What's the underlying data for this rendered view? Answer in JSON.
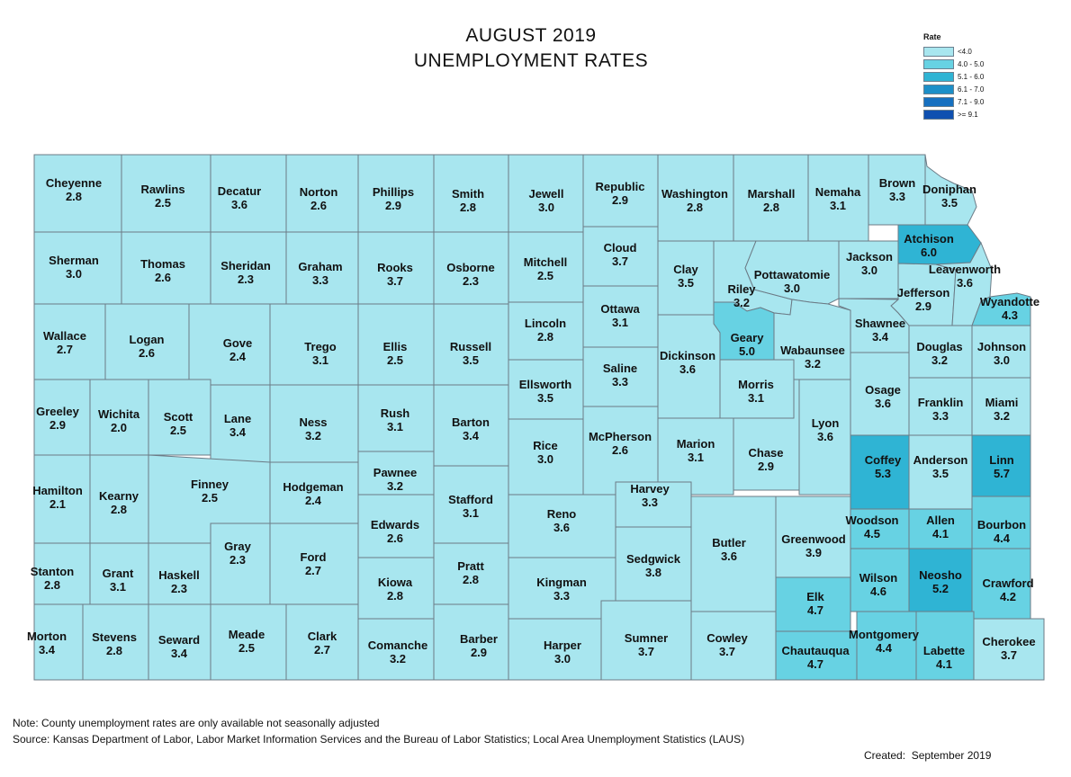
{
  "title_line1": "AUGUST 2019",
  "title_line2": "UNEMPLOYMENT RATES",
  "legend": {
    "title": "Rate",
    "items": [
      {
        "label": "<4.0",
        "color": "#a8e6ef"
      },
      {
        "label": "4.0 - 5.0",
        "color": "#67d2e3"
      },
      {
        "label": "5.1 - 6.0",
        "color": "#2fb4d4"
      },
      {
        "label": "6.1 - 7.0",
        "color": "#1c8fc8"
      },
      {
        "label": "7.1 - 9.0",
        "color": "#1670c0"
      },
      {
        "label": ">= 9.1",
        "color": "#0f50b0"
      }
    ]
  },
  "counties": [
    {
      "name": "Cheyenne",
      "rate": "2.8"
    },
    {
      "name": "Rawlins",
      "rate": "2.5"
    },
    {
      "name": "Decatur",
      "rate": "3.6"
    },
    {
      "name": "Norton",
      "rate": "2.6"
    },
    {
      "name": "Phillips",
      "rate": "2.9"
    },
    {
      "name": "Smith",
      "rate": "2.8"
    },
    {
      "name": "Jewell",
      "rate": "3.0"
    },
    {
      "name": "Republic",
      "rate": "2.9"
    },
    {
      "name": "Washington",
      "rate": "2.8"
    },
    {
      "name": "Marshall",
      "rate": "2.8"
    },
    {
      "name": "Nemaha",
      "rate": "3.1"
    },
    {
      "name": "Brown",
      "rate": "3.3"
    },
    {
      "name": "Doniphan",
      "rate": "3.5"
    },
    {
      "name": "Sherman",
      "rate": "3.0"
    },
    {
      "name": "Thomas",
      "rate": "2.6"
    },
    {
      "name": "Sheridan",
      "rate": "2.3"
    },
    {
      "name": "Graham",
      "rate": "3.3"
    },
    {
      "name": "Rooks",
      "rate": "3.7"
    },
    {
      "name": "Osborne",
      "rate": "2.3"
    },
    {
      "name": "Mitchell",
      "rate": "2.5"
    },
    {
      "name": "Cloud",
      "rate": "3.7"
    },
    {
      "name": "Clay",
      "rate": "3.5"
    },
    {
      "name": "Riley",
      "rate": "3.2"
    },
    {
      "name": "Pottawatomie",
      "rate": "3.0"
    },
    {
      "name": "Jackson",
      "rate": "3.0"
    },
    {
      "name": "Atchison",
      "rate": "6.0"
    },
    {
      "name": "Jefferson",
      "rate": "2.9"
    },
    {
      "name": "Leavenworth",
      "rate": "3.6"
    },
    {
      "name": "Wyandotte",
      "rate": "4.3"
    },
    {
      "name": "Wallace",
      "rate": "2.7"
    },
    {
      "name": "Logan",
      "rate": "2.6"
    },
    {
      "name": "Gove",
      "rate": "2.4"
    },
    {
      "name": "Trego",
      "rate": "3.1"
    },
    {
      "name": "Ellis",
      "rate": "2.5"
    },
    {
      "name": "Russell",
      "rate": "3.5"
    },
    {
      "name": "Lincoln",
      "rate": "2.8"
    },
    {
      "name": "Ottawa",
      "rate": "3.1"
    },
    {
      "name": "Geary",
      "rate": "5.0"
    },
    {
      "name": "Dickinson",
      "rate": "3.6"
    },
    {
      "name": "Wabaunsee",
      "rate": "3.2"
    },
    {
      "name": "Shawnee",
      "rate": "3.4"
    },
    {
      "name": "Douglas",
      "rate": "3.2"
    },
    {
      "name": "Johnson",
      "rate": "3.0"
    },
    {
      "name": "Greeley",
      "rate": "2.9"
    },
    {
      "name": "Wichita",
      "rate": "2.0"
    },
    {
      "name": "Scott",
      "rate": "2.5"
    },
    {
      "name": "Lane",
      "rate": "3.4"
    },
    {
      "name": "Ness",
      "rate": "3.2"
    },
    {
      "name": "Rush",
      "rate": "3.1"
    },
    {
      "name": "Barton",
      "rate": "3.4"
    },
    {
      "name": "Ellsworth",
      "rate": "3.5"
    },
    {
      "name": "Saline",
      "rate": "3.3"
    },
    {
      "name": "Morris",
      "rate": "3.1"
    },
    {
      "name": "Osage",
      "rate": "3.6"
    },
    {
      "name": "Franklin",
      "rate": "3.3"
    },
    {
      "name": "Miami",
      "rate": "3.2"
    },
    {
      "name": "Rice",
      "rate": "3.0"
    },
    {
      "name": "McPherson",
      "rate": "2.6"
    },
    {
      "name": "Marion",
      "rate": "3.1"
    },
    {
      "name": "Chase",
      "rate": "2.9"
    },
    {
      "name": "Lyon",
      "rate": "3.6"
    },
    {
      "name": "Coffey",
      "rate": "5.3"
    },
    {
      "name": "Anderson",
      "rate": "3.5"
    },
    {
      "name": "Linn",
      "rate": "5.7"
    },
    {
      "name": "Hamilton",
      "rate": "2.1"
    },
    {
      "name": "Kearny",
      "rate": "2.8"
    },
    {
      "name": "Finney",
      "rate": "2.5"
    },
    {
      "name": "Hodgeman",
      "rate": "2.4"
    },
    {
      "name": "Pawnee",
      "rate": "3.2"
    },
    {
      "name": "Stafford",
      "rate": "3.1"
    },
    {
      "name": "Reno",
      "rate": "3.6"
    },
    {
      "name": "Harvey",
      "rate": "3.3"
    },
    {
      "name": "Butler",
      "rate": "3.6"
    },
    {
      "name": "Greenwood",
      "rate": "3.9"
    },
    {
      "name": "Woodson",
      "rate": "4.5"
    },
    {
      "name": "Allen",
      "rate": "4.1"
    },
    {
      "name": "Bourbon",
      "rate": "4.4"
    },
    {
      "name": "Gray",
      "rate": "2.3"
    },
    {
      "name": "Ford",
      "rate": "2.7"
    },
    {
      "name": "Edwards",
      "rate": "2.6"
    },
    {
      "name": "Pratt",
      "rate": "2.8"
    },
    {
      "name": "Kingman",
      "rate": "3.3"
    },
    {
      "name": "Sedgwick",
      "rate": "3.8"
    },
    {
      "name": "Stanton",
      "rate": "2.8"
    },
    {
      "name": "Grant",
      "rate": "3.1"
    },
    {
      "name": "Haskell",
      "rate": "2.3"
    },
    {
      "name": "Kiowa",
      "rate": "2.8"
    },
    {
      "name": "Elk",
      "rate": "4.7"
    },
    {
      "name": "Wilson",
      "rate": "4.6"
    },
    {
      "name": "Neosho",
      "rate": "5.2"
    },
    {
      "name": "Crawford",
      "rate": "4.2"
    },
    {
      "name": "Morton",
      "rate": "3.4"
    },
    {
      "name": "Stevens",
      "rate": "2.8"
    },
    {
      "name": "Seward",
      "rate": "3.4"
    },
    {
      "name": "Meade",
      "rate": "2.5"
    },
    {
      "name": "Clark",
      "rate": "2.7"
    },
    {
      "name": "Comanche",
      "rate": "3.2"
    },
    {
      "name": "Barber",
      "rate": "2.9"
    },
    {
      "name": "Harper",
      "rate": "3.0"
    },
    {
      "name": "Sumner",
      "rate": "3.7"
    },
    {
      "name": "Cowley",
      "rate": "3.7"
    },
    {
      "name": "Chautauqua",
      "rate": "4.7"
    },
    {
      "name": "Montgomery",
      "rate": "4.4"
    },
    {
      "name": "Labette",
      "rate": "4.1"
    },
    {
      "name": "Cherokee",
      "rate": "3.7"
    }
  ],
  "note_line1": "Note: County unemployment rates are only available not seasonally adjusted",
  "note_line2": "Source: Kansas Department of Labor, Labor Market Information Services and the Bureau of Labor Statistics; Local Area Unemployment Statistics (LAUS)",
  "created": "Created:  September 2019"
}
